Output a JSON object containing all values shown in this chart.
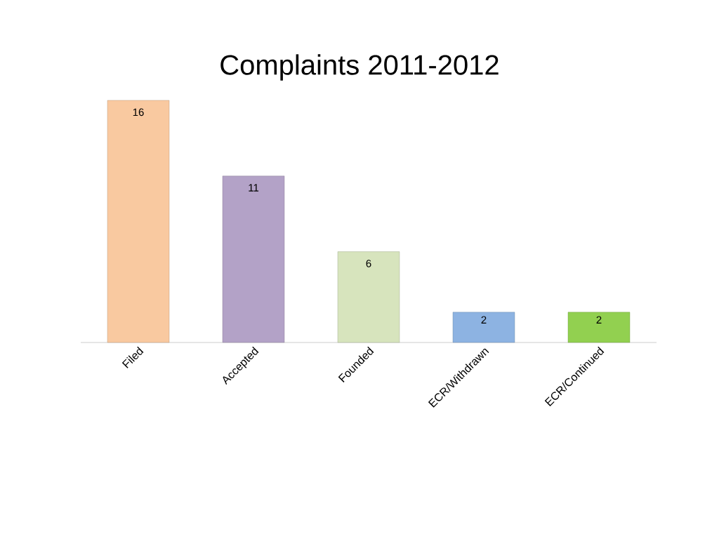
{
  "chart_data": {
    "type": "bar",
    "title": "Complaints  2011-2012",
    "categories": [
      "Filed",
      "Accepted",
      "Founded",
      "ECR/Withdrawn",
      "ECR/Continued"
    ],
    "values": [
      16,
      11,
      6,
      2,
      2
    ],
    "colors": [
      "#f9c9a0",
      "#b3a2c7",
      "#d7e4bd",
      "#8db3e2",
      "#92d050"
    ],
    "data_labels": true
  }
}
